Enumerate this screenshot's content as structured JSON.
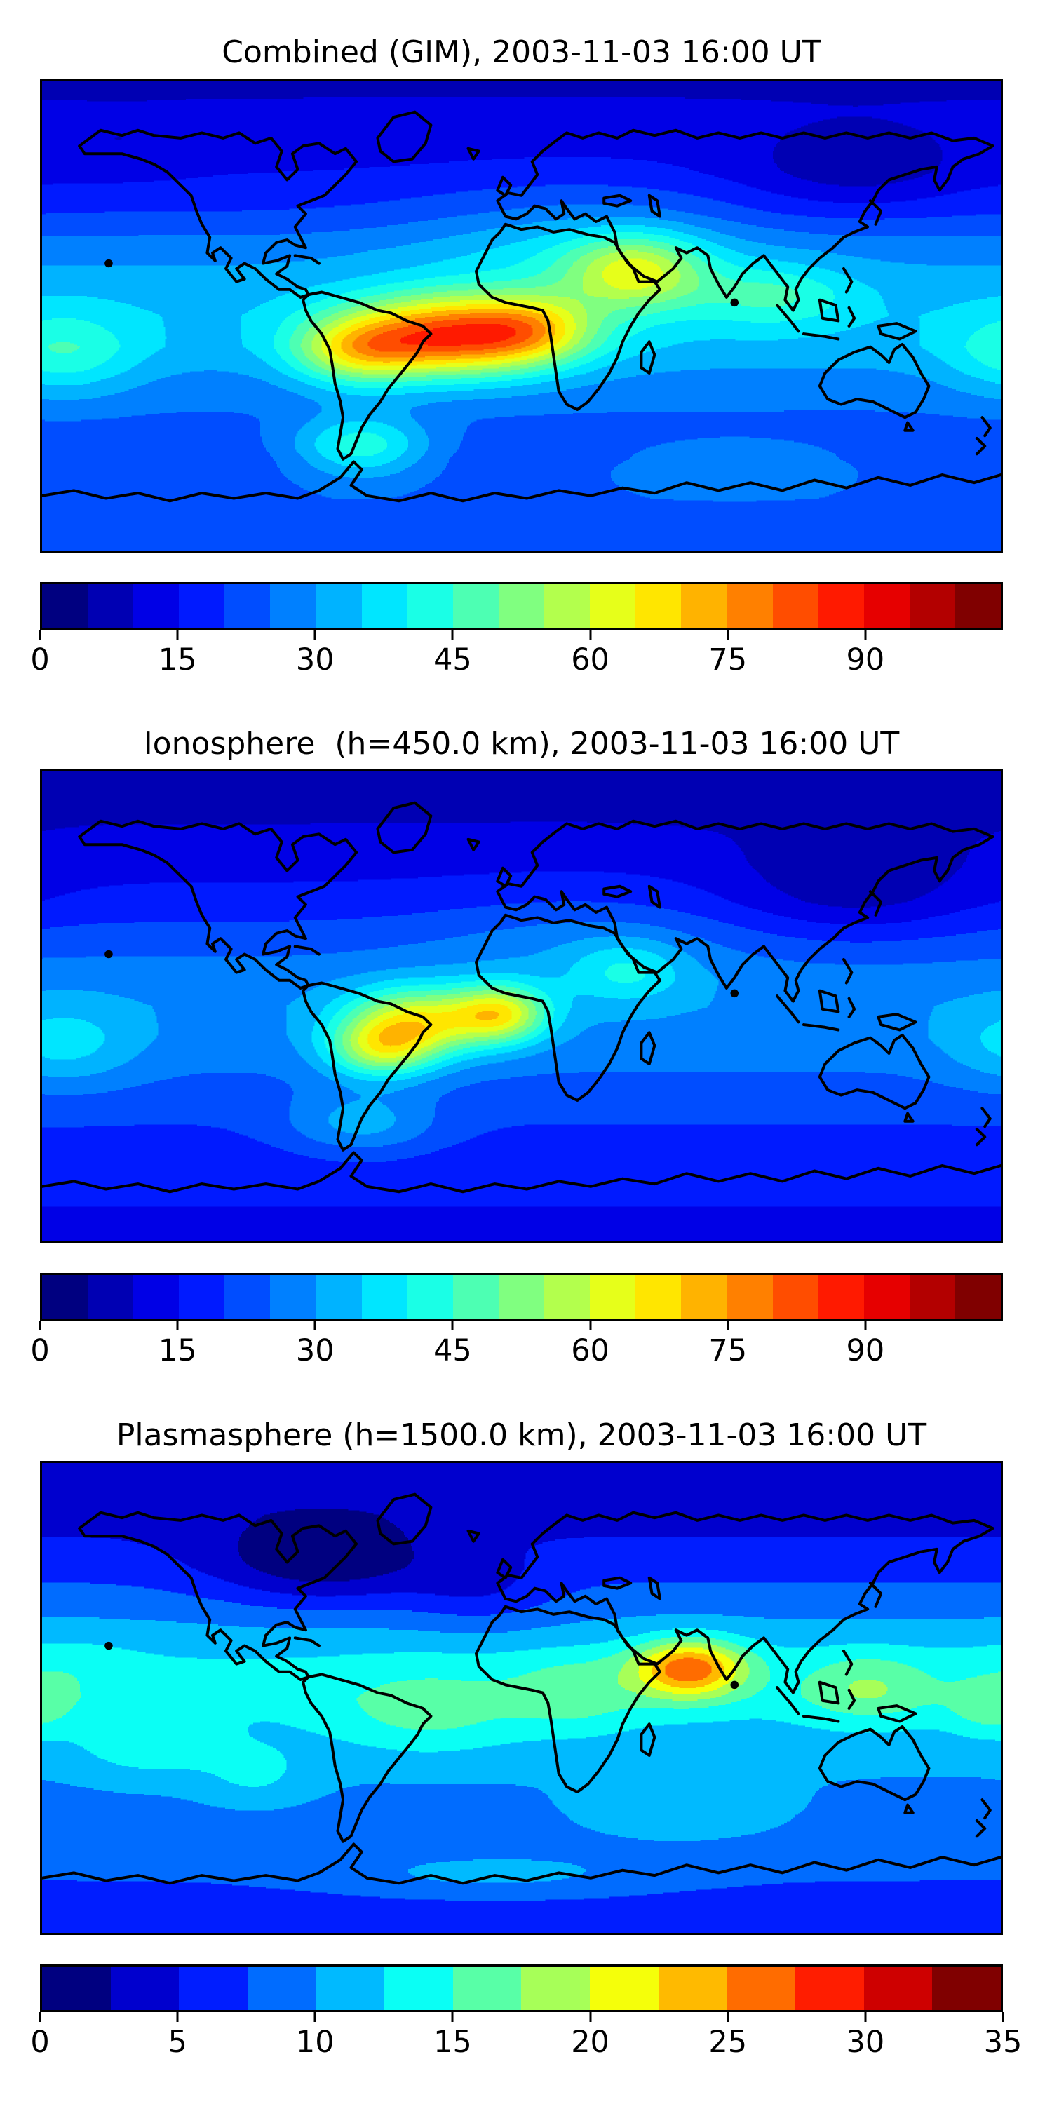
{
  "figure": {
    "background": "#ffffff",
    "text_color": "#000000",
    "coastline_color": "#000000",
    "border_color": "#000000"
  },
  "chart_data": [
    {
      "type": "heatmap",
      "subtype": "filled-contour-world-map",
      "title": "Combined (GIM), 2003-11-03 16:00 UT",
      "projection": "equirectangular, lon -180..180, lat -90..90",
      "grid": "off",
      "legend_position": "horizontal colorbar below map",
      "colorbar": {
        "min": 0,
        "max": 105,
        "level_step": 5,
        "tick_values": [
          0,
          15,
          30,
          45,
          60,
          75,
          90
        ],
        "tick_labels": [
          "0",
          "15",
          "30",
          "45",
          "60",
          "75",
          "90"
        ],
        "segment_colors": [
          "#000080",
          "#0000B3",
          "#0000E6",
          "#001AFF",
          "#004DFF",
          "#0080FF",
          "#00B3FF",
          "#00E6FF",
          "#1AFFE6",
          "#4DFFB3",
          "#80FF80",
          "#B3FF4D",
          "#E6FF1A",
          "#FFE600",
          "#FFB300",
          "#FF8000",
          "#FF4D00",
          "#FF1A00",
          "#E60000",
          "#B30000",
          "#800000"
        ]
      },
      "field": {
        "peak_value": 88,
        "peak_location": "equatorial South Atlantic between Brazil and West Africa",
        "base_lat_profile": [
          [
            90,
            9
          ],
          [
            70,
            12
          ],
          [
            55,
            15
          ],
          [
            40,
            20
          ],
          [
            25,
            28
          ],
          [
            10,
            33
          ],
          [
            0,
            34
          ],
          [
            -12,
            33
          ],
          [
            -25,
            28
          ],
          [
            -40,
            24
          ],
          [
            -55,
            22
          ],
          [
            -70,
            24
          ],
          [
            -90,
            20
          ]
        ],
        "gaussian_blobs": [
          {
            "lon": -25,
            "lat": -8,
            "sx": 40,
            "sy": 15,
            "amp": 50
          },
          {
            "lon": -62,
            "lat": -14,
            "sx": 24,
            "sy": 13,
            "amp": 24
          },
          {
            "lon": 5,
            "lat": -5,
            "sx": 22,
            "sy": 12,
            "amp": 16
          },
          {
            "lon": 43,
            "lat": 17,
            "sx": 26,
            "sy": 14,
            "amp": 26
          },
          {
            "lon": 95,
            "lat": 8,
            "sx": 28,
            "sy": 12,
            "amp": 12
          },
          {
            "lon": -172,
            "lat": -15,
            "sx": 28,
            "sy": 16,
            "amp": 13
          },
          {
            "lon": 20,
            "lat": 25,
            "sx": 60,
            "sy": 25,
            "amp": 9
          },
          {
            "lon": 125,
            "lat": 55,
            "sx": 42,
            "sy": 15,
            "amp": -8
          },
          {
            "lon": -150,
            "lat": 62,
            "sx": 30,
            "sy": 12,
            "amp": -3
          },
          {
            "lon": -60,
            "lat": -50,
            "sx": 25,
            "sy": 12,
            "amp": 20
          },
          {
            "lon": 80,
            "lat": -58,
            "sx": 45,
            "sy": 10,
            "amp": 7
          }
        ]
      }
    },
    {
      "type": "heatmap",
      "subtype": "filled-contour-world-map",
      "title": "Ionosphere  (h=450.0 km), 2003-11-03 16:00 UT",
      "projection": "equirectangular, lon -180..180, lat -90..90",
      "grid": "off",
      "legend_position": "horizontal colorbar below map",
      "colorbar": {
        "min": 0,
        "max": 105,
        "level_step": 5,
        "tick_values": [
          0,
          15,
          30,
          45,
          60,
          75,
          90
        ],
        "tick_labels": [
          "0",
          "15",
          "30",
          "45",
          "60",
          "75",
          "90"
        ],
        "segment_colors": [
          "#000080",
          "#0000B3",
          "#0000E6",
          "#001AFF",
          "#004DFF",
          "#0080FF",
          "#00B3FF",
          "#00E6FF",
          "#1AFFE6",
          "#4DFFB3",
          "#80FF80",
          "#B3FF4D",
          "#E6FF1A",
          "#FFE600",
          "#FFB300",
          "#FF8000",
          "#FF4D00",
          "#FF1A00",
          "#E60000",
          "#B30000",
          "#800000"
        ]
      },
      "field": {
        "peak_value": 71,
        "peak_location": "equatorial South America / South Atlantic",
        "base_lat_profile": [
          [
            90,
            8
          ],
          [
            70,
            10
          ],
          [
            55,
            13
          ],
          [
            40,
            17
          ],
          [
            25,
            23
          ],
          [
            10,
            28
          ],
          [
            0,
            29
          ],
          [
            -12,
            28
          ],
          [
            -25,
            25
          ],
          [
            -40,
            21
          ],
          [
            -55,
            18
          ],
          [
            -70,
            16
          ],
          [
            -90,
            13
          ]
        ],
        "gaussian_blobs": [
          {
            "lon": -40,
            "lat": -6,
            "sx": 26,
            "sy": 13,
            "amp": 34
          },
          {
            "lon": -8,
            "lat": -3,
            "sx": 18,
            "sy": 11,
            "amp": 33
          },
          {
            "lon": -53,
            "lat": -17,
            "sx": 20,
            "sy": 11,
            "amp": 26
          },
          {
            "lon": 40,
            "lat": 14,
            "sx": 22,
            "sy": 12,
            "amp": 11
          },
          {
            "lon": -172,
            "lat": -15,
            "sx": 28,
            "sy": 16,
            "amp": 10
          },
          {
            "lon": 20,
            "lat": 25,
            "sx": 55,
            "sy": 22,
            "amp": 5
          },
          {
            "lon": 125,
            "lat": 45,
            "sx": 45,
            "sy": 20,
            "amp": -9
          },
          {
            "lon": -60,
            "lat": -45,
            "sx": 28,
            "sy": 12,
            "amp": 12
          }
        ]
      }
    },
    {
      "type": "heatmap",
      "subtype": "filled-contour-world-map",
      "title": "Plasmasphere (h=1500.0 km), 2003-11-03 16:00 UT",
      "projection": "equirectangular, lon -180..180, lat -90..90",
      "grid": "off",
      "legend_position": "horizontal colorbar below map",
      "colorbar": {
        "min": 0,
        "max": 35,
        "level_step": 2.5,
        "tick_values": [
          0,
          5,
          10,
          15,
          20,
          25,
          30,
          35
        ],
        "tick_labels": [
          "0",
          "5",
          "10",
          "15",
          "20",
          "25",
          "30",
          "35"
        ],
        "segment_colors": [
          "#000080",
          "#0000CE",
          "#001DFF",
          "#006CFF",
          "#00BAFF",
          "#0AFFF5",
          "#58FFA7",
          "#A7FF58",
          "#F5FF0A",
          "#FFBA00",
          "#FF6C00",
          "#FF1D00",
          "#CE0000",
          "#800000"
        ]
      },
      "field": {
        "peak_value": 27,
        "peak_location": "Arabian Sea / southern India",
        "base_lat_profile": [
          [
            90,
            3
          ],
          [
            70,
            4
          ],
          [
            50,
            6.5
          ],
          [
            30,
            10
          ],
          [
            15,
            12.5
          ],
          [
            0,
            13
          ],
          [
            -15,
            11.5
          ],
          [
            -30,
            10
          ],
          [
            -45,
            9
          ],
          [
            -60,
            8.5
          ],
          [
            -75,
            7
          ],
          [
            -90,
            6
          ]
        ],
        "gaussian_blobs": [
          {
            "lon": 63,
            "lat": 11,
            "sx": 21,
            "sy": 11,
            "amp": 14.5
          },
          {
            "lon": 20,
            "lat": 2,
            "sx": 24,
            "sy": 14,
            "amp": 4
          },
          {
            "lon": -35,
            "lat": -5,
            "sx": 35,
            "sy": 16,
            "amp": 4
          },
          {
            "lon": 130,
            "lat": 4,
            "sx": 26,
            "sy": 13,
            "amp": 5
          },
          {
            "lon": 176,
            "lat": -4,
            "sx": 15,
            "sy": 10,
            "amp": 4
          },
          {
            "lon": -140,
            "lat": -18,
            "sx": 25,
            "sy": 13,
            "amp": 3.5
          },
          {
            "lon": -100,
            "lat": -30,
            "sx": 22,
            "sy": 12,
            "amp": 3
          },
          {
            "lon": -75,
            "lat": 52,
            "sx": 42,
            "sy": 17,
            "amp": -6
          },
          {
            "lon": -15,
            "lat": 40,
            "sx": 28,
            "sy": 14,
            "amp": -3
          },
          {
            "lon": 60,
            "lat": -45,
            "sx": 45,
            "sy": 12,
            "amp": 2.5
          },
          {
            "lon": -170,
            "lat": 10,
            "sx": 25,
            "sy": 13,
            "amp": 2
          },
          {
            "lon": -10,
            "lat": -68,
            "sx": 60,
            "sy": 8,
            "amp": 3
          }
        ]
      }
    }
  ]
}
